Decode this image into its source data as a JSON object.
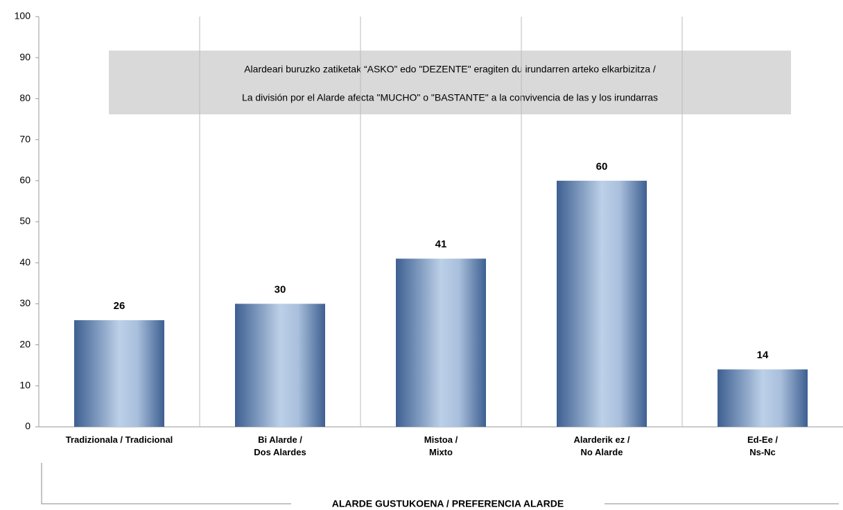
{
  "chart_data": {
    "type": "bar",
    "categories": [
      "Tradizionala / Tradicional",
      "Bi Alarde /\nDos Alardes",
      "Mistoa /\nMixto",
      "Alarderik ez /\nNo Alarde",
      "Ed-Ee /\nNs-Nc"
    ],
    "values": [
      26,
      30,
      41,
      60,
      14
    ],
    "color": "#3d5f91",
    "ylim": [
      0,
      100
    ],
    "yticks": [
      0,
      10,
      20,
      30,
      40,
      50,
      60,
      70,
      80,
      90,
      100
    ],
    "annotation": [
      "Alardeari buruzko zatiketak “ASKO” edo \"DEZENTE\" eragiten du irundarren arteko elkarbizitza /",
      "La división por el Alarde afecta \"MUCHO\"  o \"BASTANTE\"  a la convivencia de las y los irundarras"
    ],
    "xlabel": "ALARDE GUSTUKOENA / PREFERENCIA ALARDE"
  }
}
